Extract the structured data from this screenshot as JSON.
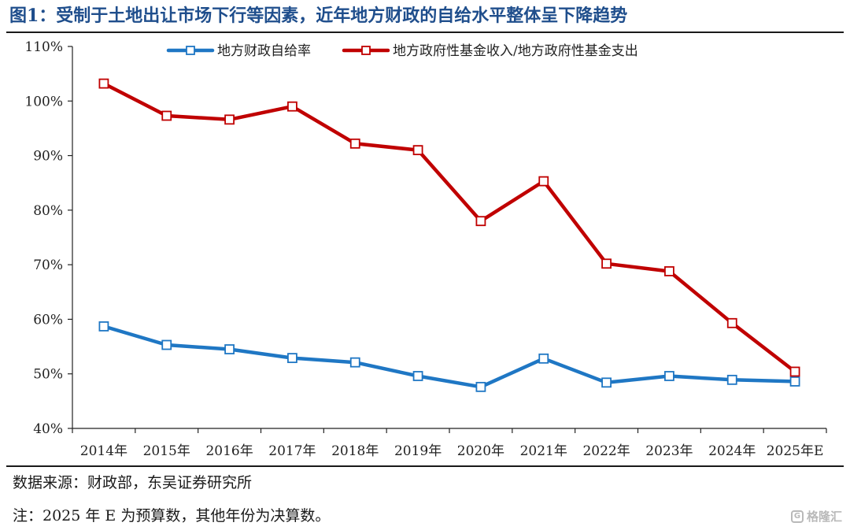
{
  "figure": {
    "title": "图1：受制于土地出让市场下行等因素，近年地方财政的自给水平整体呈下降趋势",
    "source": "数据来源：财政部，东吴证券研究所",
    "note": "注：2025 年 E 为预算数，其他年份为决算数。",
    "watermark": "格隆汇",
    "title_color": "#1f4e8c"
  },
  "chart_data": {
    "type": "line",
    "title": "",
    "xlabel": "",
    "ylabel": "",
    "categories": [
      "2014年",
      "2015年",
      "2016年",
      "2017年",
      "2018年",
      "2019年",
      "2020年",
      "2021年",
      "2022年",
      "2023年",
      "2024年",
      "2025年E"
    ],
    "ylim": [
      40,
      110
    ],
    "yticks": [
      40,
      50,
      60,
      70,
      80,
      90,
      100,
      110
    ],
    "ytick_format": "%",
    "grid": false,
    "legend_position": "top-center",
    "series": [
      {
        "name": "地方财政自给率",
        "color": "#1f77c4",
        "marker": "hollow-square",
        "values": [
          58.7,
          55.3,
          54.5,
          52.9,
          52.1,
          49.6,
          47.6,
          52.8,
          48.4,
          49.6,
          48.9,
          48.6
        ]
      },
      {
        "name": "地方政府性基金收入/地方政府性基金支出",
        "color": "#c00000",
        "marker": "hollow-square",
        "values": [
          103.2,
          97.3,
          96.6,
          99.0,
          92.2,
          91.0,
          78.0,
          85.3,
          70.2,
          68.8,
          59.3,
          50.4
        ]
      }
    ]
  }
}
